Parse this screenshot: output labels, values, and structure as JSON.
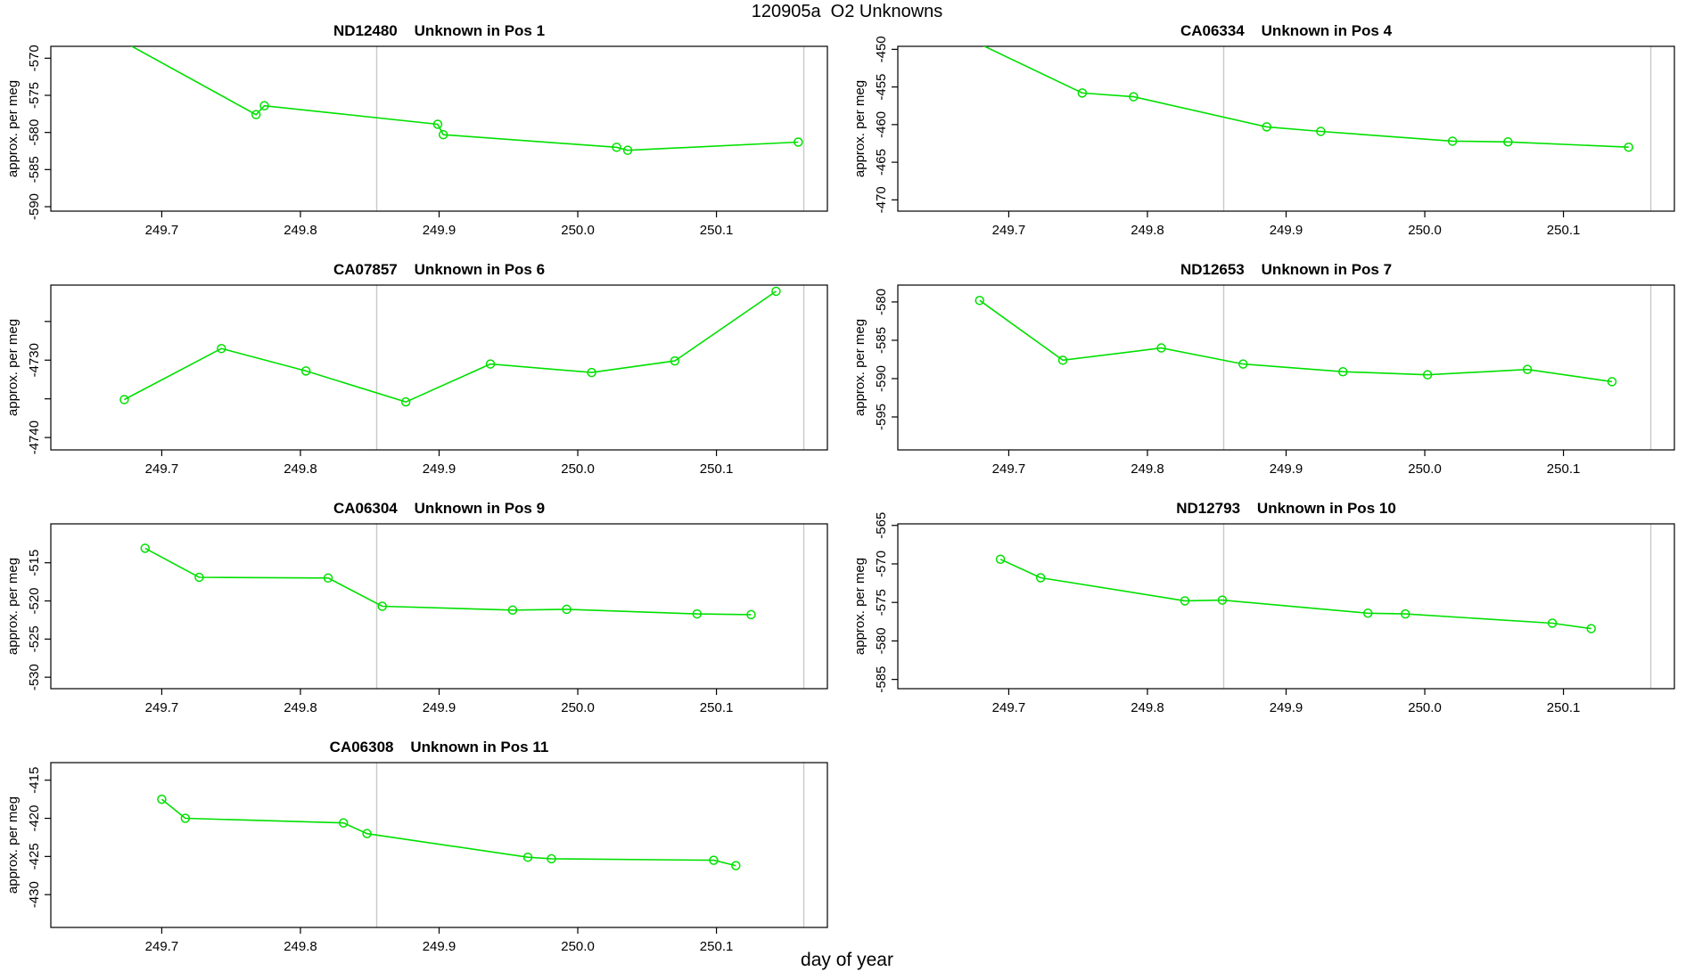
{
  "figure": {
    "title": "120905a  O2 Unknowns",
    "xlabel": "day of year",
    "ylabel": "approx. per meg",
    "background": "#ffffff"
  },
  "style": {
    "line_color": "#00e000",
    "marker_color": "#00e000",
    "vline_color": "#c8c8c8",
    "axis_color": "#000000",
    "text_color": "#000000"
  },
  "chart_data": [
    {
      "type": "line",
      "sample_id": "ND12480",
      "title": "ND12480    Unknown in Pos 1",
      "ylabel": "approx. per meg",
      "x": [
        249.66,
        249.768,
        249.774,
        249.899,
        249.903,
        250.028,
        250.036,
        250.159
      ],
      "y": [
        -566.5,
        -577.6,
        -576.4,
        -578.9,
        -580.3,
        -582.0,
        -582.4,
        -581.3
      ],
      "first_point_clipped": true,
      "xlim": [
        249.62,
        250.18
      ],
      "xticks": [
        249.7,
        249.8,
        249.9,
        250.0,
        250.1
      ],
      "xtick_labels": [
        "249.7",
        "249.8",
        "249.9",
        "250.0",
        "250.1"
      ],
      "ylim": [
        -590.6,
        -568.4
      ],
      "yticks": [
        -570,
        -575,
        -580,
        -585,
        -590
      ],
      "ytick_labels": [
        "-570",
        "-575",
        "-580",
        "-585",
        "-590"
      ],
      "vlines": [
        249.855,
        250.163
      ],
      "grid": false,
      "col": 0,
      "row": 0
    },
    {
      "type": "line",
      "sample_id": "CA06334",
      "title": "CA06334    Unknown in Pos 4",
      "ylabel": "approx. per meg",
      "x": [
        249.67,
        249.753,
        249.79,
        249.886,
        249.925,
        250.02,
        250.06,
        250.147
      ],
      "y": [
        -448.5,
        -455.8,
        -456.3,
        -460.3,
        -460.9,
        -462.2,
        -462.3,
        -463.0
      ],
      "first_point_clipped": true,
      "xlim": [
        249.62,
        250.18
      ],
      "xticks": [
        249.7,
        249.8,
        249.9,
        250.0,
        250.1
      ],
      "xtick_labels": [
        "249.7",
        "249.8",
        "249.9",
        "250.0",
        "250.1"
      ],
      "ylim": [
        -471.5,
        -449.6
      ],
      "yticks": [
        -450,
        -455,
        -460,
        -465,
        -470
      ],
      "ytick_labels": [
        "-450",
        "-455",
        "-460",
        "-465",
        "-470"
      ],
      "vlines": [
        249.855,
        250.163
      ],
      "grid": false,
      "col": 1,
      "row": 0
    },
    {
      "type": "line",
      "sample_id": "CA07857",
      "title": "CA07857    Unknown in Pos 6",
      "ylabel": "approx. per meg",
      "x": [
        249.673,
        249.743,
        249.804,
        249.876,
        249.937,
        250.01,
        250.07,
        250.143
      ],
      "y": [
        -4735.1,
        -4728.5,
        -4731.4,
        -4735.4,
        -4730.5,
        -4731.6,
        -4730.1,
        -4721.1
      ],
      "first_point_clipped": false,
      "xlim": [
        249.62,
        250.18
      ],
      "xticks": [
        249.7,
        249.8,
        249.9,
        250.0,
        250.1
      ],
      "xtick_labels": [
        "249.7",
        "249.8",
        "249.9",
        "250.0",
        "250.1"
      ],
      "ylim": [
        -4741.6,
        -4720.3
      ],
      "yticks": [
        -4725,
        -4730,
        -4735,
        -4740
      ],
      "ytick_labels": [
        "",
        "-4730",
        "",
        "-4740"
      ],
      "vlines": [
        249.855,
        250.163
      ],
      "grid": false,
      "col": 0,
      "row": 1
    },
    {
      "type": "line",
      "sample_id": "ND12653",
      "title": "ND12653    Unknown in Pos 7",
      "ylabel": "approx. per meg",
      "x": [
        249.679,
        249.739,
        249.81,
        249.869,
        249.941,
        250.002,
        250.074,
        250.135
      ],
      "y": [
        -579.8,
        -587.6,
        -586.0,
        -588.1,
        -589.1,
        -589.5,
        -588.8,
        -590.4
      ],
      "first_point_clipped": false,
      "xlim": [
        249.62,
        250.18
      ],
      "xticks": [
        249.7,
        249.8,
        249.9,
        250.0,
        250.1
      ],
      "xtick_labels": [
        "249.7",
        "249.8",
        "249.9",
        "250.0",
        "250.1"
      ],
      "ylim": [
        -599.3,
        -577.8
      ],
      "yticks": [
        -580,
        -585,
        -590,
        -595
      ],
      "ytick_labels": [
        "-580",
        "-585",
        "-590",
        "-595"
      ],
      "vlines": [
        249.855,
        250.163
      ],
      "grid": false,
      "col": 1,
      "row": 1
    },
    {
      "type": "line",
      "sample_id": "CA06304",
      "title": "CA06304    Unknown in Pos 9",
      "ylabel": "approx. per meg",
      "x": [
        249.688,
        249.727,
        249.82,
        249.859,
        249.953,
        249.992,
        250.086,
        250.125
      ],
      "y": [
        -513.1,
        -516.9,
        -517.0,
        -520.7,
        -521.2,
        -521.1,
        -521.7,
        -521.8
      ],
      "first_point_clipped": false,
      "xlim": [
        249.62,
        250.18
      ],
      "xticks": [
        249.7,
        249.8,
        249.9,
        250.0,
        250.1
      ],
      "xtick_labels": [
        "249.7",
        "249.8",
        "249.9",
        "250.0",
        "250.1"
      ],
      "ylim": [
        -531.5,
        -509.9
      ],
      "yticks": [
        -515,
        -520,
        -525,
        -530
      ],
      "ytick_labels": [
        "-515",
        "-520",
        "-525",
        "-530"
      ],
      "vlines": [
        249.855,
        250.163
      ],
      "grid": false,
      "col": 0,
      "row": 2
    },
    {
      "type": "line",
      "sample_id": "ND12793",
      "title": "ND12793    Unknown in Pos 10",
      "ylabel": "approx. per meg",
      "x": [
        249.694,
        249.723,
        249.827,
        249.854,
        249.959,
        249.986,
        250.092,
        250.12
      ],
      "y": [
        -569.4,
        -571.8,
        -574.8,
        -574.7,
        -576.4,
        -576.5,
        -577.7,
        -578.4
      ],
      "first_point_clipped": false,
      "xlim": [
        249.62,
        250.18
      ],
      "xticks": [
        249.7,
        249.8,
        249.9,
        250.0,
        250.1
      ],
      "xtick_labels": [
        "249.7",
        "249.8",
        "249.9",
        "250.0",
        "250.1"
      ],
      "ylim": [
        -586.2,
        -564.8
      ],
      "yticks": [
        -565,
        -570,
        -575,
        -580,
        -585
      ],
      "ytick_labels": [
        "-565",
        "-570",
        "-575",
        "-580",
        "-585"
      ],
      "vlines": [
        249.855,
        250.163
      ],
      "grid": false,
      "col": 1,
      "row": 2
    },
    {
      "type": "line",
      "sample_id": "CA06308",
      "title": "CA06308    Unknown in Pos 11",
      "ylabel": "approx. per meg",
      "x": [
        249.7,
        249.717,
        249.831,
        249.848,
        249.964,
        249.981,
        250.098,
        250.114
      ],
      "y": [
        -417.5,
        -420.0,
        -420.6,
        -422.0,
        -425.1,
        -425.3,
        -425.5,
        -426.2
      ],
      "first_point_clipped": false,
      "xlim": [
        249.62,
        250.18
      ],
      "xticks": [
        249.7,
        249.8,
        249.9,
        250.0,
        250.1
      ],
      "xtick_labels": [
        "249.7",
        "249.8",
        "249.9",
        "250.0",
        "250.1"
      ],
      "ylim": [
        -434.3,
        -412.7
      ],
      "yticks": [
        -415,
        -420,
        -425,
        -430
      ],
      "ytick_labels": [
        "-415",
        "-420",
        "-425",
        "-430"
      ],
      "vlines": [
        249.855,
        250.163
      ],
      "grid": false,
      "col": 0,
      "row": 3
    }
  ]
}
